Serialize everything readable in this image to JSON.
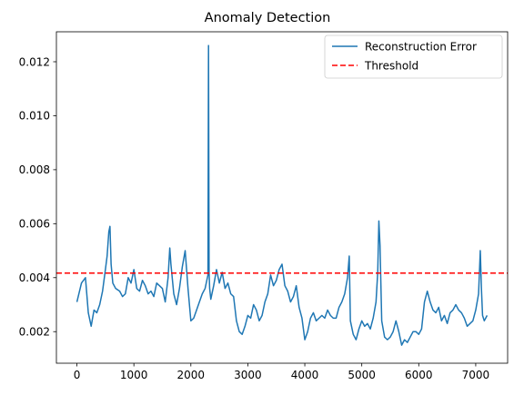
{
  "chart_data": {
    "type": "line",
    "title": "Anomaly Detection",
    "xlabel": "",
    "ylabel": "",
    "xlim": [
      -360,
      7560
    ],
    "ylim": [
      0.00083,
      0.01311
    ],
    "x_ticks": [
      0,
      1000,
      2000,
      3000,
      4000,
      5000,
      6000,
      7000
    ],
    "x_tick_labels": [
      "0",
      "1000",
      "2000",
      "3000",
      "4000",
      "5000",
      "6000",
      "7000"
    ],
    "y_ticks": [
      0.002,
      0.004,
      0.006,
      0.008,
      0.01,
      0.012
    ],
    "y_tick_labels": [
      "0.002",
      "0.004",
      "0.006",
      "0.008",
      "0.010",
      "0.012"
    ],
    "grid": false,
    "legend_position": "top-right",
    "series": [
      {
        "name": "Reconstruction Error",
        "color": "#1f77b4",
        "style": "solid",
        "x": [
          0,
          80,
          150,
          200,
          250,
          300,
          350,
          400,
          450,
          500,
          530,
          560,
          580,
          600,
          630,
          680,
          750,
          800,
          850,
          900,
          950,
          1000,
          1050,
          1100,
          1150,
          1200,
          1250,
          1300,
          1350,
          1400,
          1450,
          1500,
          1550,
          1600,
          1630,
          1650,
          1700,
          1750,
          1800,
          1850,
          1900,
          1950,
          2000,
          2050,
          2100,
          2150,
          2200,
          2250,
          2280,
          2300,
          2310,
          2320,
          2330,
          2350,
          2400,
          2450,
          2500,
          2550,
          2600,
          2650,
          2700,
          2750,
          2800,
          2850,
          2900,
          2950,
          3000,
          3050,
          3100,
          3150,
          3200,
          3250,
          3300,
          3350,
          3400,
          3450,
          3500,
          3550,
          3600,
          3650,
          3700,
          3750,
          3800,
          3850,
          3900,
          3950,
          4000,
          4050,
          4100,
          4150,
          4200,
          4250,
          4300,
          4350,
          4400,
          4450,
          4500,
          4550,
          4600,
          4650,
          4700,
          4750,
          4780,
          4800,
          4850,
          4900,
          4950,
          5000,
          5050,
          5100,
          5150,
          5200,
          5250,
          5280,
          5300,
          5320,
          5350,
          5400,
          5450,
          5500,
          5550,
          5600,
          5650,
          5700,
          5750,
          5800,
          5850,
          5900,
          5950,
          6000,
          6050,
          6100,
          6150,
          6200,
          6250,
          6300,
          6350,
          6400,
          6450,
          6500,
          6550,
          6600,
          6650,
          6700,
          6750,
          6800,
          6850,
          6900,
          6950,
          7000,
          7050,
          7080,
          7100,
          7120,
          7150,
          7200
        ],
        "y": [
          0.0031,
          0.0038,
          0.004,
          0.0027,
          0.0022,
          0.0028,
          0.0027,
          0.003,
          0.0035,
          0.0043,
          0.0048,
          0.0057,
          0.0059,
          0.0045,
          0.0038,
          0.0036,
          0.0035,
          0.0033,
          0.0034,
          0.004,
          0.0038,
          0.0043,
          0.0036,
          0.0035,
          0.0039,
          0.0037,
          0.0034,
          0.0035,
          0.0033,
          0.0038,
          0.0037,
          0.0036,
          0.0031,
          0.004,
          0.0051,
          0.0045,
          0.0034,
          0.003,
          0.0036,
          0.0044,
          0.005,
          0.0036,
          0.0024,
          0.0025,
          0.0028,
          0.0031,
          0.0034,
          0.0036,
          0.0039,
          0.0041,
          0.0126,
          0.0042,
          0.0036,
          0.0032,
          0.0037,
          0.0043,
          0.0038,
          0.0042,
          0.0036,
          0.0038,
          0.0034,
          0.0033,
          0.0024,
          0.002,
          0.0019,
          0.0022,
          0.0026,
          0.0025,
          0.003,
          0.0028,
          0.0024,
          0.0026,
          0.0031,
          0.0034,
          0.0041,
          0.0037,
          0.0039,
          0.0043,
          0.0045,
          0.0037,
          0.0035,
          0.0031,
          0.0033,
          0.0037,
          0.0029,
          0.0025,
          0.0017,
          0.002,
          0.0025,
          0.0027,
          0.0024,
          0.0025,
          0.0026,
          0.0025,
          0.0028,
          0.0026,
          0.0025,
          0.0025,
          0.0029,
          0.0031,
          0.0034,
          0.004,
          0.0048,
          0.0024,
          0.0019,
          0.0017,
          0.0021,
          0.0024,
          0.0022,
          0.0023,
          0.0021,
          0.0025,
          0.0031,
          0.0042,
          0.0061,
          0.0052,
          0.0024,
          0.0018,
          0.0017,
          0.0018,
          0.002,
          0.0024,
          0.002,
          0.0015,
          0.0017,
          0.0016,
          0.0018,
          0.002,
          0.002,
          0.0019,
          0.0021,
          0.0031,
          0.0035,
          0.0031,
          0.0028,
          0.0027,
          0.0029,
          0.0024,
          0.0026,
          0.0023,
          0.0027,
          0.0028,
          0.003,
          0.0028,
          0.0027,
          0.0025,
          0.0022,
          0.0023,
          0.0024,
          0.0028,
          0.0034,
          0.005,
          0.0036,
          0.0026,
          0.0024,
          0.0026
        ]
      },
      {
        "name": "Threshold",
        "color": "#ff0000",
        "style": "dashed",
        "value": 0.00417
      }
    ]
  }
}
